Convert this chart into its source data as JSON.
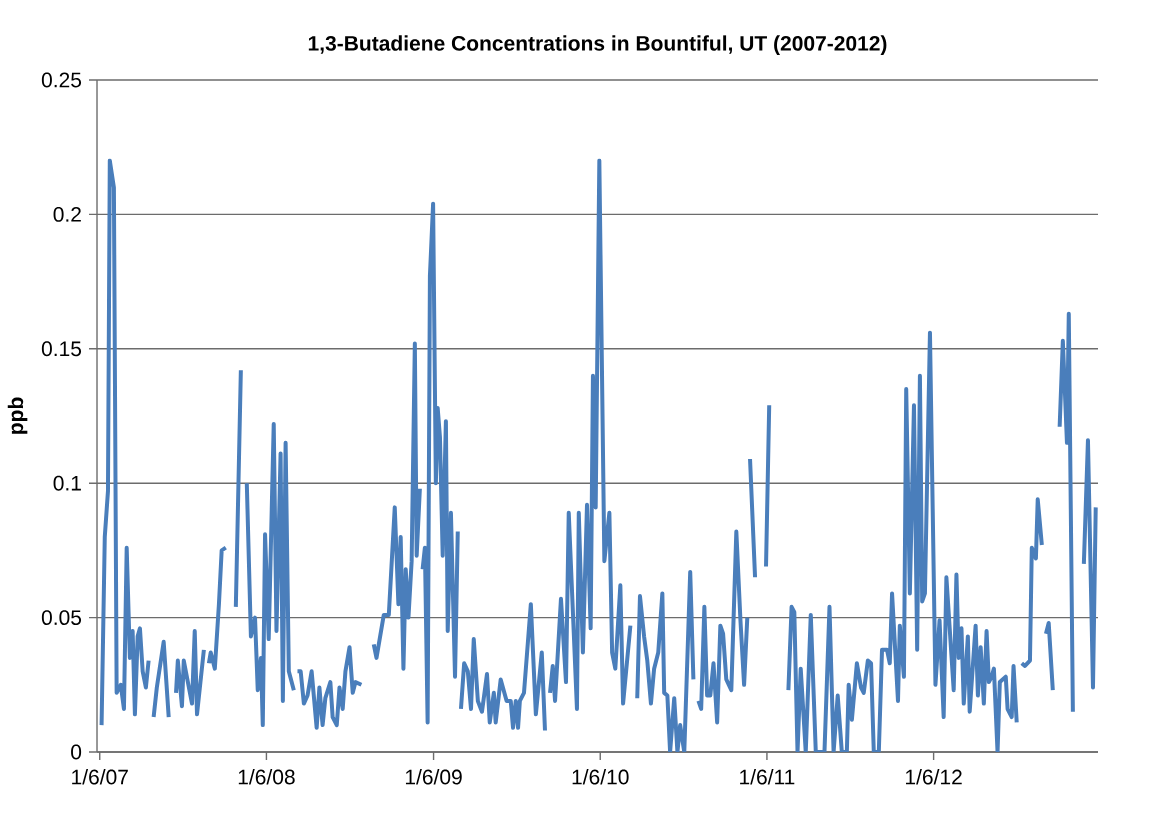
{
  "chart_data": {
    "type": "line",
    "title": "1,3-Butadiene Concentrations in Bountiful, UT (2007-2012)",
    "ylabel": "ppb",
    "color": "#4a7ebb",
    "line_style": "solid",
    "grid": "y",
    "xlim": [
      "2006-12-31",
      "2012-12-31"
    ],
    "ylim": [
      0,
      0.25
    ],
    "xticks": [
      {
        "value": "2007-01-06",
        "label": "1/6/07"
      },
      {
        "value": "2008-01-06",
        "label": "1/6/08"
      },
      {
        "value": "2009-01-06",
        "label": "1/6/09"
      },
      {
        "value": "2010-01-06",
        "label": "1/6/10"
      },
      {
        "value": "2011-01-06",
        "label": "1/6/11"
      },
      {
        "value": "2012-01-06",
        "label": "1/6/12"
      }
    ],
    "yticks": [
      0,
      0.05,
      0.1,
      0.15,
      0.2,
      0.25
    ],
    "x": [
      "2007-01-10",
      "2007-01-17",
      "2007-01-24",
      "2007-01-28",
      "2007-02-06",
      "2007-02-12",
      "2007-02-21",
      "2007-02-28",
      "2007-03-06",
      "2007-03-13",
      "2007-03-19",
      "2007-03-24",
      "2007-03-30",
      "2007-04-04",
      "2007-04-10",
      "2007-04-17",
      "2007-04-23",
      "2007-04-28",
      "2007-05-04",
      "2007-05-11",
      "2007-05-26",
      "2007-06-06",
      "2007-06-14",
      "2007-06-22",
      "2007-06-26",
      "2007-07-05",
      "2007-07-09",
      "2007-07-18",
      "2007-07-27",
      "2007-08-02",
      "2007-08-07",
      "2007-08-22",
      "2007-08-28",
      "2007-09-02",
      "2007-09-06",
      "2007-09-15",
      "2007-09-24",
      "2007-09-30",
      "2007-10-09",
      "2007-10-20",
      "2007-10-31",
      "2007-11-11",
      "2007-11-18",
      "2007-11-24",
      "2007-12-03",
      "2007-12-12",
      "2007-12-18",
      "2007-12-25",
      "2007-12-29",
      "2008-01-03",
      "2008-01-11",
      "2008-01-22",
      "2008-01-28",
      "2008-02-06",
      "2008-02-11",
      "2008-02-17",
      "2008-02-24",
      "2008-03-06",
      "2008-03-10",
      "2008-03-14",
      "2008-03-21",
      "2008-03-28",
      "2008-04-05",
      "2008-04-14",
      "2008-04-25",
      "2008-05-01",
      "2008-05-08",
      "2008-05-14",
      "2008-05-25",
      "2008-05-30",
      "2008-06-08",
      "2008-06-14",
      "2008-06-21",
      "2008-06-27",
      "2008-07-06",
      "2008-07-13",
      "2008-07-19",
      "2008-08-01",
      "2008-08-15",
      "2008-08-28",
      "2008-09-03",
      "2008-09-19",
      "2008-09-30",
      "2008-10-13",
      "2008-10-21",
      "2008-10-26",
      "2008-11-01",
      "2008-11-06",
      "2008-11-12",
      "2008-11-19",
      "2008-11-26",
      "2008-11-30",
      "2008-12-07",
      "2008-12-10",
      "2008-12-13",
      "2008-12-18",
      "2008-12-24",
      "2008-12-29",
      "2009-01-05",
      "2009-01-11",
      "2009-01-15",
      "2009-01-20",
      "2009-01-26",
      "2009-02-02",
      "2009-02-06",
      "2009-02-13",
      "2009-02-22",
      "2009-02-28",
      "2009-03-03",
      "2009-03-07",
      "2009-03-14",
      "2009-03-22",
      "2009-03-29",
      "2009-04-04",
      "2009-04-13",
      "2009-04-22",
      "2009-05-03",
      "2009-05-09",
      "2009-05-18",
      "2009-05-22",
      "2009-06-02",
      "2009-06-15",
      "2009-06-24",
      "2009-06-29",
      "2009-07-05",
      "2009-07-10",
      "2009-07-14",
      "2009-07-23",
      "2009-08-07",
      "2009-08-18",
      "2009-08-31",
      "2009-09-07",
      "2009-09-12",
      "2009-09-18",
      "2009-09-24",
      "2009-09-29",
      "2009-10-12",
      "2009-10-23",
      "2009-10-29",
      "2009-11-16",
      "2009-11-20",
      "2009-11-29",
      "2009-12-08",
      "2009-12-16",
      "2009-12-21",
      "2009-12-27",
      "2010-01-04",
      "2010-01-15",
      "2010-01-26",
      "2010-02-01",
      "2010-02-08",
      "2010-02-19",
      "2010-02-25",
      "2010-03-13",
      "2010-03-20",
      "2010-03-28",
      "2010-04-03",
      "2010-04-12",
      "2010-04-19",
      "2010-04-27",
      "2010-05-04",
      "2010-05-13",
      "2010-05-22",
      "2010-05-26",
      "2010-06-02",
      "2010-06-08",
      "2010-06-17",
      "2010-06-24",
      "2010-06-30",
      "2010-07-09",
      "2010-07-22",
      "2010-07-29",
      "2010-08-03",
      "2010-08-09",
      "2010-08-15",
      "2010-08-22",
      "2010-08-28",
      "2010-09-04",
      "2010-09-11",
      "2010-09-19",
      "2010-09-26",
      "2010-10-02",
      "2010-10-09",
      "2010-10-20",
      "2010-10-31",
      "2010-11-09",
      "2010-11-17",
      "2010-11-24",
      "2010-11-27",
      "2010-11-30",
      "2010-12-11",
      "2010-12-20",
      "2011-01-04",
      "2011-01-11",
      "2011-02-01",
      "2011-02-22",
      "2011-03-01",
      "2011-03-07",
      "2011-03-14",
      "2011-03-21",
      "2011-04-01",
      "2011-04-12",
      "2011-04-23",
      "2011-05-01",
      "2011-05-12",
      "2011-05-23",
      "2011-06-01",
      "2011-06-10",
      "2011-06-19",
      "2011-06-30",
      "2011-07-04",
      "2011-07-11",
      "2011-07-22",
      "2011-07-31",
      "2011-08-06",
      "2011-08-15",
      "2011-08-22",
      "2011-08-28",
      "2011-09-08",
      "2011-09-15",
      "2011-09-26",
      "2011-10-02",
      "2011-10-07",
      "2011-10-20",
      "2011-10-24",
      "2011-11-02",
      "2011-11-07",
      "2011-11-15",
      "2011-11-24",
      "2011-12-01",
      "2011-12-07",
      "2011-12-12",
      "2011-12-18",
      "2011-12-29",
      "2012-01-10",
      "2012-01-19",
      "2012-01-28",
      "2012-02-03",
      "2012-02-19",
      "2012-02-25",
      "2012-03-01",
      "2012-03-07",
      "2012-03-12",
      "2012-03-21",
      "2012-03-25",
      "2012-04-07",
      "2012-04-12",
      "2012-04-18",
      "2012-04-25",
      "2012-05-01",
      "2012-05-06",
      "2012-05-12",
      "2012-05-17",
      "2012-05-25",
      "2012-05-30",
      "2012-06-12",
      "2012-06-16",
      "2012-06-25",
      "2012-06-29",
      "2012-07-06",
      "2012-07-11",
      "2012-07-17",
      "2012-07-24",
      "2012-08-04",
      "2012-08-08",
      "2012-08-17",
      "2012-08-21",
      "2012-08-30",
      "2012-09-04",
      "2012-09-08",
      "2012-09-14",
      "2012-09-23",
      "2012-10-01",
      "2012-10-08",
      "2012-10-15",
      "2012-10-24",
      "2012-10-28",
      "2012-11-06",
      "2012-11-20",
      "2012-11-30",
      "2012-12-09",
      "2012-12-20",
      "2012-12-26"
    ],
    "values": [
      0.01,
      0.08,
      0.097,
      0.22,
      0.21,
      0.022,
      0.025,
      0.016,
      0.076,
      0.035,
      0.045,
      0.014,
      0.043,
      0.046,
      0.03,
      0.024,
      0.034,
      null,
      0.013,
      0.024,
      0.041,
      0.013,
      null,
      0.022,
      0.034,
      0.017,
      0.034,
      0.026,
      0.018,
      0.045,
      0.014,
      0.038,
      null,
      0.033,
      0.037,
      0.031,
      0.055,
      0.075,
      0.076,
      null,
      0.054,
      0.142,
      null,
      0.1,
      0.043,
      0.05,
      0.023,
      0.035,
      0.01,
      0.081,
      0.042,
      0.122,
      0.045,
      0.111,
      0.019,
      0.115,
      0.03,
      0.023,
      null,
      0.03,
      0.03,
      0.018,
      0.021,
      0.03,
      0.009,
      0.024,
      0.01,
      0.02,
      0.026,
      0.013,
      0.01,
      0.024,
      0.016,
      0.03,
      0.039,
      0.022,
      0.026,
      0.025,
      null,
      0.04,
      0.035,
      0.051,
      0.051,
      0.091,
      0.055,
      0.08,
      0.031,
      0.068,
      0.05,
      0.071,
      0.152,
      0.073,
      0.098,
      null,
      0.068,
      0.076,
      0.011,
      0.177,
      0.204,
      0.1,
      0.128,
      0.117,
      0.073,
      0.123,
      0.045,
      0.089,
      0.028,
      0.082,
      null,
      0.016,
      0.033,
      0.03,
      0.016,
      0.042,
      0.019,
      0.015,
      0.029,
      0.011,
      0.022,
      0.011,
      0.027,
      0.019,
      0.019,
      0.009,
      0.019,
      0.009,
      0.019,
      0.022,
      0.055,
      0.014,
      0.037,
      0.008,
      null,
      0.022,
      0.032,
      0.019,
      0.057,
      0.026,
      0.089,
      0.016,
      0.089,
      0.037,
      0.092,
      0.046,
      0.14,
      0.091,
      0.22,
      0.071,
      0.089,
      0.037,
      0.031,
      0.062,
      0.018,
      0.047,
      null,
      0.02,
      0.058,
      0.043,
      0.034,
      0.018,
      0.031,
      0.037,
      0.059,
      0.022,
      0.021,
      0,
      0.02,
      0,
      0.01,
      0,
      0.067,
      0.027,
      null,
      0.019,
      0.016,
      0.054,
      0.021,
      0.021,
      0.033,
      0.011,
      0.047,
      0.044,
      0.027,
      0.023,
      0.082,
      0.049,
      0.025,
      0.05,
      null,
      0.109,
      0.065,
      null,
      0.069,
      0.129,
      null,
      0.023,
      0.054,
      0.052,
      0,
      0.031,
      0,
      0.051,
      0,
      0,
      0,
      0.054,
      0,
      0.021,
      0,
      0,
      0.025,
      0.012,
      0.033,
      0.024,
      0.022,
      0.034,
      0.033,
      0,
      0,
      0.038,
      0.038,
      0.033,
      0.059,
      0.019,
      0.047,
      0.028,
      0.135,
      0.059,
      0.129,
      0.038,
      0.14,
      0.056,
      0.059,
      0.156,
      0.025,
      0.049,
      0.013,
      0.065,
      0.023,
      0.066,
      0.035,
      0.046,
      0.018,
      0.043,
      0.015,
      0.047,
      0.021,
      0.039,
      0.018,
      0.045,
      0.026,
      0.028,
      0.031,
      0,
      0.026,
      0.028,
      0.016,
      0.013,
      0.032,
      0.011,
      null,
      0.033,
      0.032,
      0.034,
      0.076,
      0.072,
      0.094,
      0.077,
      null,
      0.044,
      0.048,
      0.023,
      null,
      0.121,
      0.153,
      0.115,
      0.163,
      0.015,
      null,
      0.07,
      0.116,
      0.024,
      0.091
    ]
  }
}
